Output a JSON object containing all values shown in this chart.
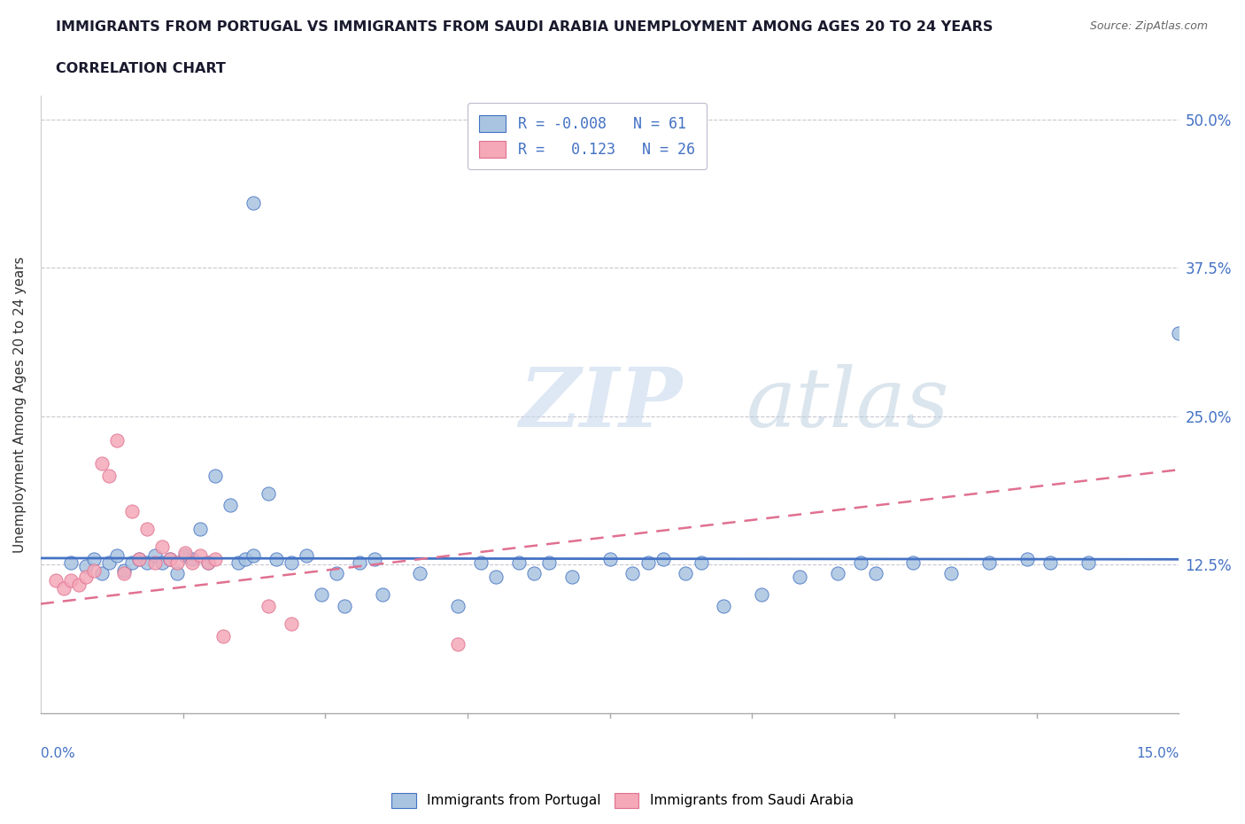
{
  "title_line1": "IMMIGRANTS FROM PORTUGAL VS IMMIGRANTS FROM SAUDI ARABIA UNEMPLOYMENT AMONG AGES 20 TO 24 YEARS",
  "title_line2": "CORRELATION CHART",
  "source": "Source: ZipAtlas.com",
  "ylabel": "Unemployment Among Ages 20 to 24 years",
  "xlim": [
    0.0,
    0.15
  ],
  "ylim": [
    0.0,
    0.52
  ],
  "yticks": [
    0.125,
    0.25,
    0.375,
    0.5
  ],
  "ytick_labels": [
    "12.5%",
    "25.0%",
    "37.5%",
    "50.0%"
  ],
  "watermark_zip": "ZIP",
  "watermark_atlas": "atlas",
  "legend_r_portugal": "-0.008",
  "legend_n_portugal": "61",
  "legend_r_saudi": "0.123",
  "legend_n_saudi": "26",
  "color_portugal": "#a8c4e0",
  "color_saudi": "#f4a8b8",
  "trend_portugal_color": "#4472c4",
  "trend_saudi_color": "#e07090",
  "background_color": "#ffffff",
  "blue_trend_y0": 0.1305,
  "blue_trend_y1": 0.1295,
  "pink_trend_y0": 0.092,
  "pink_trend_y1": 0.205,
  "blue_points": [
    [
      0.004,
      0.127
    ],
    [
      0.006,
      0.124
    ],
    [
      0.007,
      0.13
    ],
    [
      0.008,
      0.118
    ],
    [
      0.009,
      0.127
    ],
    [
      0.01,
      0.133
    ],
    [
      0.011,
      0.12
    ],
    [
      0.012,
      0.127
    ],
    [
      0.013,
      0.13
    ],
    [
      0.014,
      0.127
    ],
    [
      0.015,
      0.133
    ],
    [
      0.016,
      0.127
    ],
    [
      0.017,
      0.13
    ],
    [
      0.018,
      0.118
    ],
    [
      0.019,
      0.133
    ],
    [
      0.02,
      0.13
    ],
    [
      0.021,
      0.155
    ],
    [
      0.022,
      0.127
    ],
    [
      0.023,
      0.2
    ],
    [
      0.025,
      0.175
    ],
    [
      0.026,
      0.127
    ],
    [
      0.027,
      0.13
    ],
    [
      0.028,
      0.133
    ],
    [
      0.03,
      0.185
    ],
    [
      0.031,
      0.13
    ],
    [
      0.033,
      0.127
    ],
    [
      0.035,
      0.133
    ],
    [
      0.037,
      0.1
    ],
    [
      0.039,
      0.118
    ],
    [
      0.04,
      0.09
    ],
    [
      0.042,
      0.127
    ],
    [
      0.044,
      0.13
    ],
    [
      0.045,
      0.1
    ],
    [
      0.05,
      0.118
    ],
    [
      0.055,
      0.09
    ],
    [
      0.058,
      0.127
    ],
    [
      0.06,
      0.115
    ],
    [
      0.063,
      0.127
    ],
    [
      0.065,
      0.118
    ],
    [
      0.067,
      0.127
    ],
    [
      0.07,
      0.115
    ],
    [
      0.075,
      0.13
    ],
    [
      0.078,
      0.118
    ],
    [
      0.08,
      0.127
    ],
    [
      0.082,
      0.13
    ],
    [
      0.085,
      0.118
    ],
    [
      0.087,
      0.127
    ],
    [
      0.09,
      0.09
    ],
    [
      0.095,
      0.1
    ],
    [
      0.1,
      0.115
    ],
    [
      0.105,
      0.118
    ],
    [
      0.108,
      0.127
    ],
    [
      0.11,
      0.118
    ],
    [
      0.115,
      0.127
    ],
    [
      0.12,
      0.118
    ],
    [
      0.125,
      0.127
    ],
    [
      0.13,
      0.13
    ],
    [
      0.133,
      0.127
    ],
    [
      0.138,
      0.127
    ],
    [
      0.15,
      0.32
    ],
    [
      0.028,
      0.43
    ]
  ],
  "pink_points": [
    [
      0.002,
      0.112
    ],
    [
      0.003,
      0.105
    ],
    [
      0.004,
      0.112
    ],
    [
      0.005,
      0.108
    ],
    [
      0.006,
      0.115
    ],
    [
      0.007,
      0.12
    ],
    [
      0.008,
      0.21
    ],
    [
      0.009,
      0.2
    ],
    [
      0.01,
      0.23
    ],
    [
      0.011,
      0.118
    ],
    [
      0.012,
      0.17
    ],
    [
      0.013,
      0.13
    ],
    [
      0.014,
      0.155
    ],
    [
      0.015,
      0.127
    ],
    [
      0.016,
      0.14
    ],
    [
      0.017,
      0.13
    ],
    [
      0.018,
      0.127
    ],
    [
      0.019,
      0.135
    ],
    [
      0.02,
      0.127
    ],
    [
      0.021,
      0.133
    ],
    [
      0.022,
      0.127
    ],
    [
      0.023,
      0.13
    ],
    [
      0.024,
      0.065
    ],
    [
      0.03,
      0.09
    ],
    [
      0.033,
      0.075
    ],
    [
      0.055,
      0.058
    ]
  ]
}
